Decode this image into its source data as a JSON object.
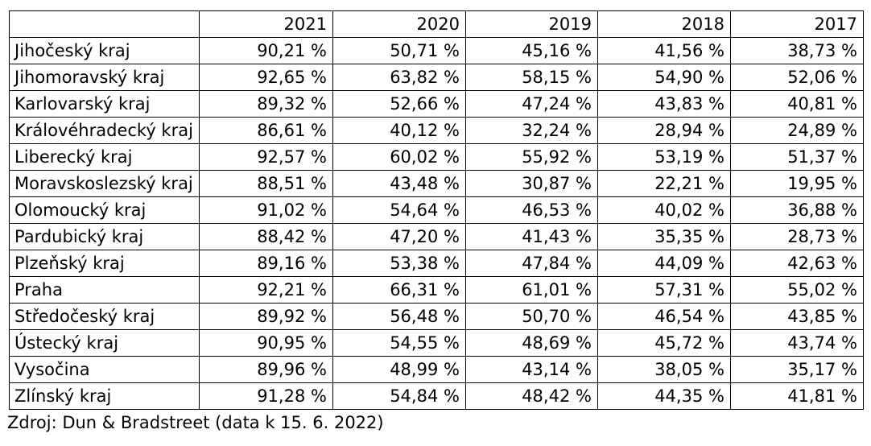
{
  "table": {
    "columns": [
      "",
      "2021",
      "2020",
      "2019",
      "2018",
      "2017"
    ],
    "rows": [
      {
        "region": "Jihočeský kraj",
        "values": [
          "90,21 %",
          "50,71 %",
          "45,16 %",
          "41,56 %",
          "38,73 %"
        ]
      },
      {
        "region": "Jihomoravský kraj",
        "values": [
          "92,65 %",
          "63,82 %",
          "58,15 %",
          "54,90 %",
          "52,06 %"
        ]
      },
      {
        "region": "Karlovarský kraj",
        "values": [
          "89,32 %",
          "52,66 %",
          "47,24 %",
          "43,83 %",
          "40,81 %"
        ]
      },
      {
        "region": "Královéhradecký kraj",
        "values": [
          "86,61 %",
          "40,12 %",
          "32,24 %",
          "28,94 %",
          "24,89 %"
        ]
      },
      {
        "region": "Liberecký kraj",
        "values": [
          "92,57 %",
          "60,02 %",
          "55,92 %",
          "53,19 %",
          "51,37 %"
        ]
      },
      {
        "region": "Moravskoslezský kraj",
        "values": [
          "88,51 %",
          "43,48 %",
          "30,87 %",
          "22,21 %",
          "19,95 %"
        ]
      },
      {
        "region": "Olomoucký kraj",
        "values": [
          "91,02 %",
          "54,64 %",
          "46,53 %",
          "40,02 %",
          "36,88 %"
        ]
      },
      {
        "region": "Pardubický kraj",
        "values": [
          "88,42 %",
          "47,20 %",
          "41,43 %",
          "35,35 %",
          "28,73 %"
        ]
      },
      {
        "region": "Plzeňský kraj",
        "values": [
          "89,16 %",
          "53,38 %",
          "47,84 %",
          "44,09 %",
          "42,63 %"
        ]
      },
      {
        "region": "Praha",
        "values": [
          "92,21 %",
          "66,31 %",
          "61,01 %",
          "57,31 %",
          "55,02 %"
        ]
      },
      {
        "region": "Středočeský kraj",
        "values": [
          "89,92 %",
          "56,48 %",
          "50,70 %",
          "46,54 %",
          "43,85 %"
        ]
      },
      {
        "region": "Ústecký kraj",
        "values": [
          "90,95 %",
          "54,55 %",
          "48,69 %",
          "45,72 %",
          "43,74 %"
        ]
      },
      {
        "region": "Vysočina",
        "values": [
          "89,96 %",
          "48,99 %",
          "43,14 %",
          "38,05 %",
          "35,17 %"
        ]
      },
      {
        "region": "Zlínský kraj",
        "values": [
          "91,28 %",
          "54,84 %",
          "48,42 %",
          "44,35 %",
          "41,81 %"
        ]
      }
    ]
  },
  "source": "Zdroj: Dun & Bradstreet (data k 15. 6. 2022)"
}
